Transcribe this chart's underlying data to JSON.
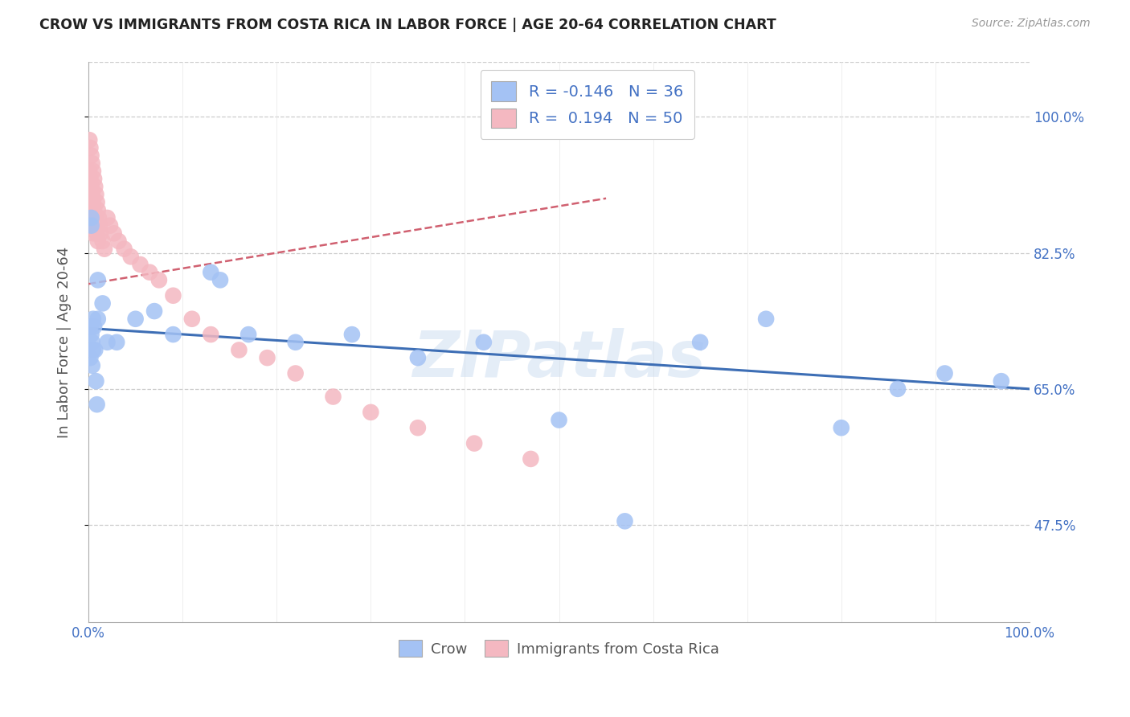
{
  "title": "CROW VS IMMIGRANTS FROM COSTA RICA IN LABOR FORCE | AGE 20-64 CORRELATION CHART",
  "source": "Source: ZipAtlas.com",
  "ylabel": "In Labor Force | Age 20-64",
  "xlim": [
    0.0,
    1.0
  ],
  "ylim": [
    0.35,
    1.07
  ],
  "yticks": [
    0.475,
    0.65,
    0.825,
    1.0
  ],
  "ytick_labels": [
    "47.5%",
    "65.0%",
    "82.5%",
    "100.0%"
  ],
  "xtick_labels": [
    "0.0%",
    "100.0%"
  ],
  "legend_labels": [
    "Crow",
    "Immigrants from Costa Rica"
  ],
  "crow_R": "-0.146",
  "crow_N": "36",
  "cr_R": "0.194",
  "cr_N": "50",
  "crow_color": "#a4c2f4",
  "cr_color": "#f4b8c1",
  "crow_line_color": "#3d6eb5",
  "cr_line_color": "#d06070",
  "watermark": "ZIPatlas",
  "crow_x": [
    0.002,
    0.002,
    0.003,
    0.003,
    0.003,
    0.004,
    0.004,
    0.005,
    0.005,
    0.006,
    0.007,
    0.008,
    0.009,
    0.01,
    0.01,
    0.015,
    0.02,
    0.03,
    0.05,
    0.07,
    0.09,
    0.13,
    0.14,
    0.17,
    0.22,
    0.28,
    0.35,
    0.42,
    0.5,
    0.57,
    0.65,
    0.72,
    0.8,
    0.86,
    0.91,
    0.97
  ],
  "crow_y": [
    0.73,
    0.69,
    0.87,
    0.86,
    0.72,
    0.71,
    0.68,
    0.74,
    0.7,
    0.73,
    0.7,
    0.66,
    0.63,
    0.79,
    0.74,
    0.76,
    0.71,
    0.71,
    0.74,
    0.75,
    0.72,
    0.8,
    0.79,
    0.72,
    0.71,
    0.72,
    0.69,
    0.71,
    0.61,
    0.48,
    0.71,
    0.74,
    0.6,
    0.65,
    0.67,
    0.66
  ],
  "cr_x": [
    0.001,
    0.001,
    0.001,
    0.002,
    0.002,
    0.002,
    0.003,
    0.003,
    0.003,
    0.004,
    0.004,
    0.004,
    0.005,
    0.005,
    0.005,
    0.006,
    0.006,
    0.007,
    0.007,
    0.008,
    0.008,
    0.009,
    0.009,
    0.01,
    0.01,
    0.011,
    0.012,
    0.013,
    0.015,
    0.017,
    0.02,
    0.023,
    0.027,
    0.032,
    0.038,
    0.045,
    0.055,
    0.065,
    0.075,
    0.09,
    0.11,
    0.13,
    0.16,
    0.19,
    0.22,
    0.26,
    0.3,
    0.35,
    0.41,
    0.47
  ],
  "cr_y": [
    0.97,
    0.93,
    0.89,
    0.96,
    0.92,
    0.88,
    0.95,
    0.91,
    0.87,
    0.94,
    0.9,
    0.86,
    0.93,
    0.89,
    0.85,
    0.92,
    0.88,
    0.91,
    0.87,
    0.9,
    0.86,
    0.89,
    0.85,
    0.88,
    0.84,
    0.87,
    0.86,
    0.85,
    0.84,
    0.83,
    0.87,
    0.86,
    0.85,
    0.84,
    0.83,
    0.82,
    0.81,
    0.8,
    0.79,
    0.77,
    0.74,
    0.72,
    0.7,
    0.69,
    0.67,
    0.64,
    0.62,
    0.6,
    0.58,
    0.56
  ],
  "crow_line_x": [
    0.0,
    1.0
  ],
  "crow_line_y": [
    0.728,
    0.65
  ],
  "cr_line_x": [
    0.0,
    0.55
  ],
  "cr_line_y": [
    0.785,
    0.895
  ]
}
